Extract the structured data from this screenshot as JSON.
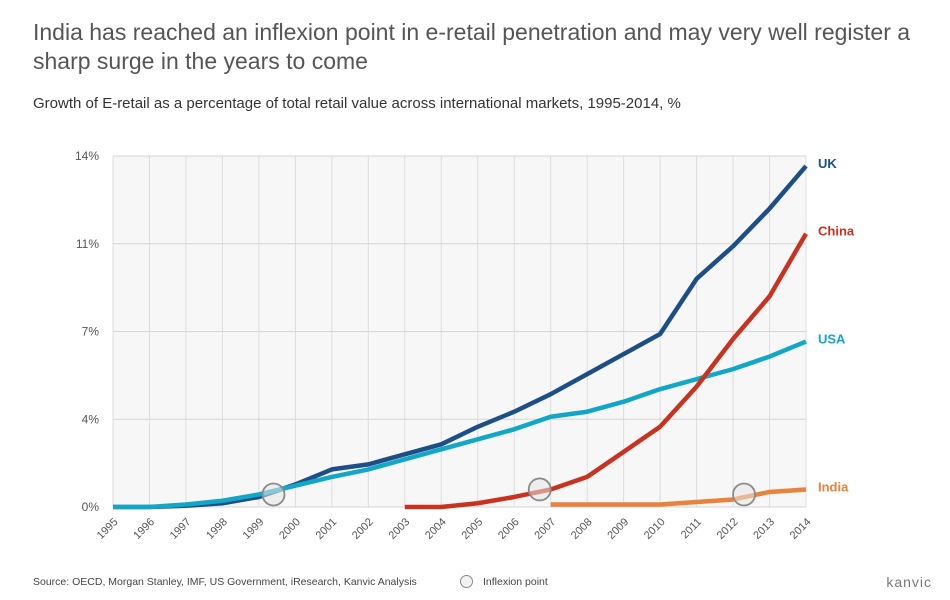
{
  "title": "India has reached an inflexion point in e-retail penetration and may very well register a sharp surge in the years to come",
  "subtitle": "Growth of E-retail as a percentage of total retail value across international markets, 1995-2014, %",
  "source": "Source: OECD, Morgan Stanley, IMF, US Government, iResearch, Kanvic Analysis",
  "inflexion_label": "Inflexion point",
  "brand": "kanvic",
  "chart_data": {
    "type": "line",
    "x": [
      "1995",
      "1996",
      "1997",
      "1998",
      "1999",
      "2000",
      "2001",
      "2002",
      "2003",
      "2004",
      "2005",
      "2006",
      "2007",
      "2008",
      "2009",
      "2010",
      "2011",
      "2012",
      "2013",
      "2014"
    ],
    "y_ticks": [
      "0%",
      "4%",
      "7%",
      "11%",
      "14%"
    ],
    "ylim": [
      0,
      14
    ],
    "grid": true,
    "series": [
      {
        "name": "UK",
        "color": "#1c4f86",
        "values": [
          0.0,
          0.0,
          0.05,
          0.15,
          0.4,
          0.9,
          1.5,
          1.7,
          2.1,
          2.5,
          3.2,
          3.8,
          4.5,
          5.3,
          6.1,
          6.9,
          9.1,
          10.4,
          11.9,
          13.6
        ]
      },
      {
        "name": "USA",
        "color": "#12a7c7",
        "values": [
          0.0,
          0.0,
          0.1,
          0.25,
          0.5,
          0.85,
          1.2,
          1.5,
          1.9,
          2.3,
          2.7,
          3.1,
          3.6,
          3.8,
          4.2,
          4.7,
          5.1,
          5.5,
          6.0,
          6.6
        ]
      },
      {
        "name": "China",
        "color": "#c8321e",
        "values": [
          null,
          null,
          null,
          null,
          null,
          null,
          null,
          null,
          0.0,
          0.0,
          0.15,
          0.4,
          0.7,
          1.2,
          2.2,
          3.2,
          4.8,
          6.7,
          8.4,
          10.9
        ]
      },
      {
        "name": "India",
        "color": "#e8823c",
        "values": [
          null,
          null,
          null,
          null,
          null,
          null,
          null,
          null,
          null,
          null,
          null,
          null,
          0.1,
          0.1,
          0.1,
          0.1,
          0.2,
          0.3,
          0.6,
          0.7
        ]
      }
    ],
    "inflexion_points": [
      {
        "x": 1999.4,
        "y": 0.5
      },
      {
        "x": 2006.7,
        "y": 0.7
      },
      {
        "x": 2012.3,
        "y": 0.5
      }
    ]
  }
}
